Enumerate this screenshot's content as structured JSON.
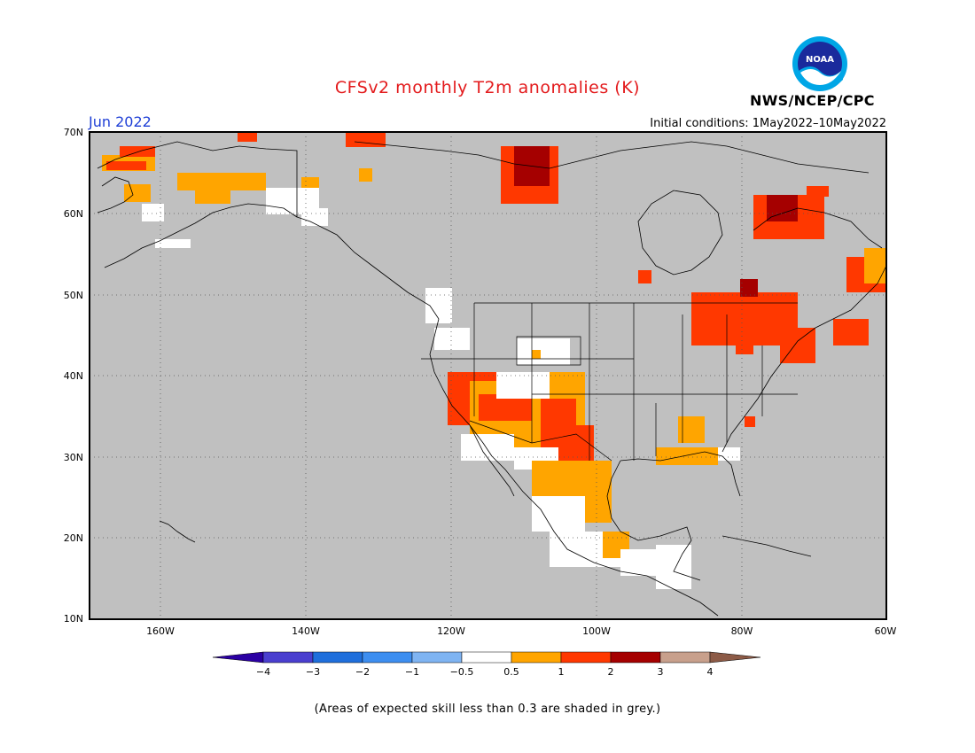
{
  "header": {
    "title": "CFSv2 monthly T2m anomalies (K)",
    "month": "Jun 2022",
    "initial_conditions": "Initial conditions: 1May2022–10May2022",
    "agency": "NWS/NCEP/CPC",
    "logo_text": "NOAA"
  },
  "map": {
    "region": "North America",
    "background_color": "#c0c0c0",
    "lat_labels": [
      "70N",
      "60N",
      "50N",
      "40N",
      "30N",
      "20N",
      "10N"
    ],
    "lon_labels": [
      "160W",
      "140W",
      "120W",
      "100W",
      "80W",
      "60W"
    ],
    "grid": "dotted"
  },
  "colorbar": {
    "tick_labels": [
      "−4",
      "−3",
      "−2",
      "−1",
      "−0.5",
      "0.5",
      "1",
      "2",
      "3",
      "4"
    ],
    "colors": [
      "#2b00a3",
      "#4a3fcf",
      "#1f6fdc",
      "#3d8ef0",
      "#7fb4f2",
      "#ffffff",
      "#ffa500",
      "#ff3800",
      "#a50000",
      "#c8a08c",
      "#8c5a46"
    ]
  },
  "footer": {
    "note": "(Areas of expected skill less than 0.3 are shaded in grey.)"
  }
}
